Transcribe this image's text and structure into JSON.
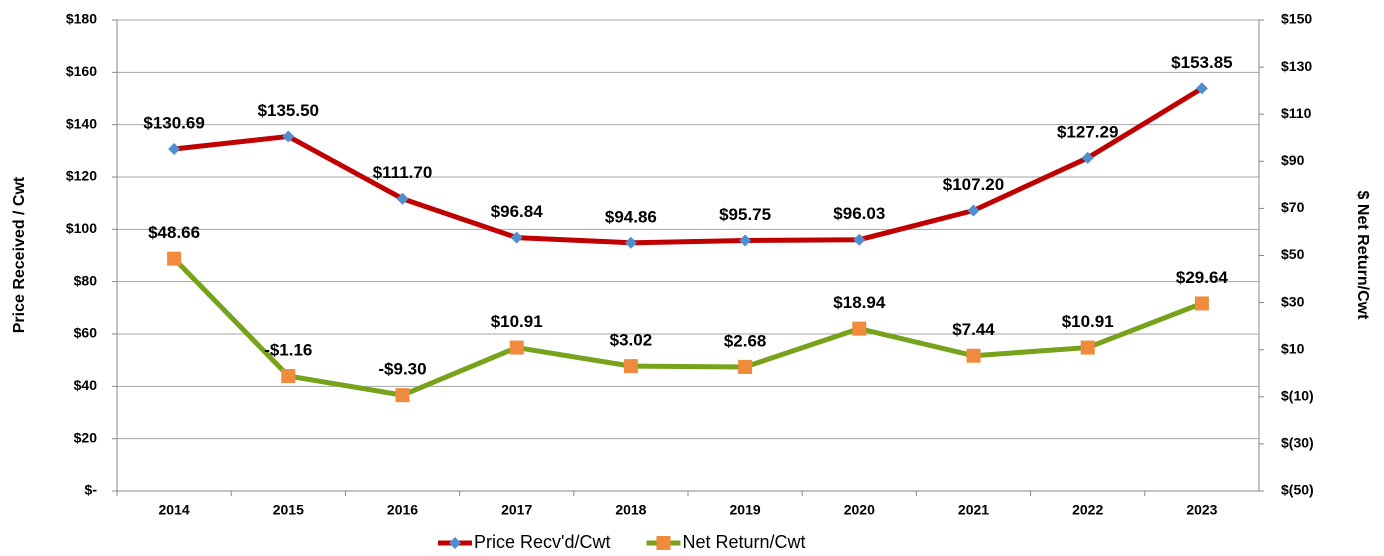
{
  "chart_data": {
    "type": "line",
    "categories": [
      "2014",
      "2015",
      "2016",
      "2017",
      "2018",
      "2019",
      "2020",
      "2021",
      "2022",
      "2023"
    ],
    "y_label": "Price Received / Cwt",
    "y2_label": "$ Net Return/Cwt",
    "series": [
      {
        "name": "Price Recv'd/Cwt",
        "color": "#c00000",
        "marker_color": "#4f8fd0",
        "marker": "diamond",
        "values": [
          130.69,
          135.5,
          111.7,
          96.84,
          94.86,
          95.75,
          96.03,
          107.2,
          127.29,
          153.85
        ],
        "value_labels": [
          "$130.69",
          "$135.50",
          "$111.70",
          "$96.84",
          "$94.86",
          "$95.75",
          "$96.03",
          "$107.20",
          "$127.29",
          "$153.85"
        ]
      },
      {
        "name": "Net Return/Cwt",
        "color": "#77a21c",
        "marker_color": "#f08a3c",
        "marker": "square",
        "axis": "y2",
        "values": [
          48.66,
          -1.16,
          -9.3,
          10.91,
          3.02,
          2.68,
          18.94,
          7.44,
          10.91,
          29.64
        ],
        "value_labels": [
          "$48.66",
          "-$1.16",
          "-$9.30",
          "$10.91",
          "$3.02",
          "$2.68",
          "$18.94",
          "$7.44",
          "$10.91",
          "$29.64"
        ]
      }
    ],
    "ylim": [
      0,
      180
    ],
    "yticks": [
      {
        "value": 0,
        "label": "$-"
      },
      {
        "value": 20,
        "label": "$20"
      },
      {
        "value": 40,
        "label": "$40"
      },
      {
        "value": 60,
        "label": "$60"
      },
      {
        "value": 80,
        "label": "$80"
      },
      {
        "value": 100,
        "label": "$100"
      },
      {
        "value": 120,
        "label": "$120"
      },
      {
        "value": 140,
        "label": "$140"
      },
      {
        "value": 160,
        "label": "$160"
      },
      {
        "value": 180,
        "label": "$180"
      }
    ],
    "y2lim": [
      -50,
      150
    ],
    "y2ticks": [
      {
        "value": -50,
        "label": "$(50)"
      },
      {
        "value": -30,
        "label": "$(30)"
      },
      {
        "value": -10,
        "label": "$(10)"
      },
      {
        "value": 10,
        "label": "$10"
      },
      {
        "value": 30,
        "label": "$30"
      },
      {
        "value": 50,
        "label": "$50"
      },
      {
        "value": 70,
        "label": "$70"
      },
      {
        "value": 90,
        "label": "$90"
      },
      {
        "value": 110,
        "label": "$110"
      },
      {
        "value": 130,
        "label": "$130"
      },
      {
        "value": 150,
        "label": "$150"
      }
    ],
    "grid": true,
    "legend": "bottom"
  }
}
